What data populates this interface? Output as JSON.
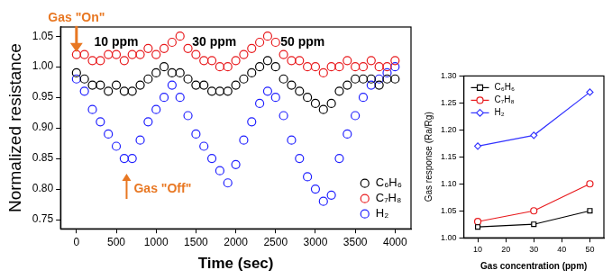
{
  "chart_data": [
    {
      "type": "scatter",
      "x_label": "Time (sec)",
      "y_label": "Normalized resistance",
      "x": [
        0,
        100,
        200,
        300,
        400,
        500,
        600,
        700,
        800,
        900,
        1000,
        1100,
        1200,
        1300,
        1400,
        1500,
        1600,
        1700,
        1800,
        1900,
        2000,
        2100,
        2200,
        2300,
        2400,
        2500,
        2600,
        2700,
        2800,
        2900,
        3000,
        3100,
        3200,
        3300,
        3400,
        3500,
        3600,
        3700,
        3800,
        3900,
        4000
      ],
      "series": [
        {
          "name": "C₆H₆",
          "color": "#000000",
          "marker": "circle",
          "values": [
            0.99,
            0.98,
            0.97,
            0.97,
            0.96,
            0.97,
            0.96,
            0.96,
            0.97,
            0.98,
            0.99,
            1.0,
            0.99,
            0.99,
            0.98,
            0.97,
            0.97,
            0.96,
            0.96,
            0.96,
            0.97,
            0.98,
            0.99,
            1.0,
            1.01,
            1.0,
            0.98,
            0.97,
            0.96,
            0.95,
            0.94,
            0.93,
            0.94,
            0.96,
            0.97,
            0.98,
            0.98,
            0.98,
            0.97,
            0.98,
            0.98
          ]
        },
        {
          "name": "C₇H₈",
          "color": "#e8191c",
          "marker": "circle",
          "values": [
            1.02,
            1.02,
            1.01,
            1.01,
            1.02,
            1.02,
            1.01,
            1.02,
            1.02,
            1.03,
            1.02,
            1.03,
            1.04,
            1.05,
            1.03,
            1.02,
            1.01,
            1.01,
            1.0,
            1.0,
            1.01,
            1.02,
            1.03,
            1.04,
            1.05,
            1.04,
            1.02,
            1.01,
            1.01,
            1.0,
            1.0,
            0.99,
            1.0,
            1.0,
            1.01,
            1.0,
            1.0,
            1.01,
            1.0,
            1.0,
            1.01
          ]
        },
        {
          "name": "H₂",
          "color": "#1f1fff",
          "marker": "circle",
          "values": [
            0.98,
            0.96,
            0.93,
            0.91,
            0.89,
            0.87,
            0.85,
            0.85,
            0.88,
            0.91,
            0.93,
            0.95,
            0.97,
            0.95,
            0.92,
            0.89,
            0.87,
            0.85,
            0.83,
            0.81,
            0.84,
            0.88,
            0.91,
            0.94,
            0.96,
            0.95,
            0.92,
            0.88,
            0.85,
            0.82,
            0.8,
            0.78,
            0.79,
            0.85,
            0.89,
            0.92,
            0.95,
            0.97,
            0.98,
            0.99,
            1.0
          ]
        }
      ],
      "xlim": [
        -200,
        4200
      ],
      "xticks": [
        0,
        500,
        1000,
        1500,
        2000,
        2500,
        3000,
        3500,
        4000
      ],
      "ylim": [
        0.735,
        1.065
      ],
      "yticks": [
        0.75,
        {
          "value": 0.8,
          "label": "0.80"
        },
        0.85,
        {
          "value": 0.9,
          "label": "0.90"
        },
        0.95,
        {
          "value": 1,
          "label": "1.00"
        },
        1.05
      ],
      "grid": false,
      "legend": "lower right",
      "annotations": [
        {
          "text": "Gas \"On\"",
          "x": 0,
          "y": 1.08,
          "color": "#e87722",
          "arrow": "down"
        },
        {
          "text": "10 ppm",
          "x": 500,
          "y": 1.04,
          "color": "#000000",
          "arrow": "none"
        },
        {
          "text": "30 ppm",
          "x": 1730,
          "y": 1.04,
          "color": "#000000",
          "arrow": "none"
        },
        {
          "text": "50 ppm",
          "x": 2840,
          "y": 1.04,
          "color": "#000000",
          "arrow": "none"
        },
        {
          "text": "Gas \"Off\"",
          "x": 720,
          "y": 0.8,
          "color": "#e87722",
          "arrow": "up"
        }
      ]
    },
    {
      "type": "line",
      "x_label": "Gas concentration (ppm)",
      "y_label": "Gas response (Ra/Rg)",
      "x": [
        10,
        30,
        50
      ],
      "series": [
        {
          "name": "C₆H₆",
          "color": "#000000",
          "marker": "square",
          "values": [
            1.02,
            1.025,
            1.05
          ]
        },
        {
          "name": "C₇H₈",
          "color": "#e8191c",
          "marker": "circle",
          "values": [
            1.03,
            1.05,
            1.1
          ]
        },
        {
          "name": "H₂",
          "color": "#3333ff",
          "marker": "diamond",
          "values": [
            1.17,
            1.19,
            1.27
          ]
        }
      ],
      "xlim": [
        5,
        55
      ],
      "xticks": [
        10,
        20,
        30,
        40,
        50
      ],
      "ylim": [
        1,
        1.3
      ],
      "yticks": [
        {
          "value": 1,
          "label": "1.00"
        },
        1.05,
        {
          "value": 1.1,
          "label": "1.10"
        },
        1.15,
        {
          "value": 1.2,
          "label": "1.20"
        },
        1.25,
        {
          "value": 1.3,
          "label": "1.30"
        }
      ],
      "grid": false,
      "legend": "upper left"
    }
  ]
}
